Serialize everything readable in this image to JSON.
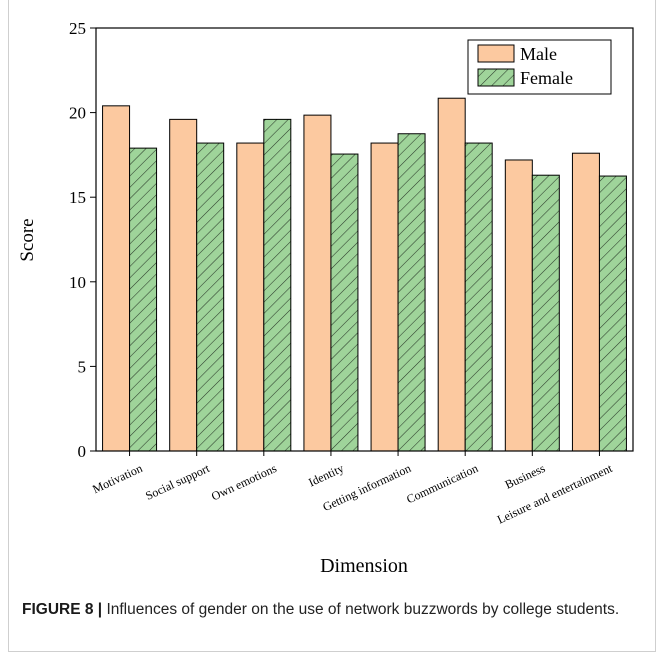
{
  "chart_data": {
    "type": "bar",
    "categories": [
      "Motivation",
      "Social support",
      "Own emotions",
      "Identity",
      "Getting information",
      "Communication",
      "Business",
      "Leisure and entertainment"
    ],
    "series": [
      {
        "name": "Male",
        "values": [
          20.4,
          19.6,
          18.2,
          19.85,
          18.2,
          20.85,
          17.2,
          17.6
        ],
        "color": "#fcc9a0",
        "pattern": "solid"
      },
      {
        "name": "Female",
        "values": [
          17.9,
          18.2,
          19.6,
          17.55,
          18.75,
          18.2,
          16.3,
          16.25
        ],
        "color": "#9fd49a",
        "pattern": "hatch"
      }
    ],
    "xlabel": "Dimension",
    "ylabel": "Score",
    "ylim": [
      0,
      25
    ],
    "yticks": [
      0,
      5,
      10,
      15,
      20,
      25
    ],
    "grid": false,
    "legend_position": "top-right"
  },
  "caption": {
    "label": "FIGURE 8 |",
    "text": " Influences of gender on the use of network buzzwords by college students."
  }
}
